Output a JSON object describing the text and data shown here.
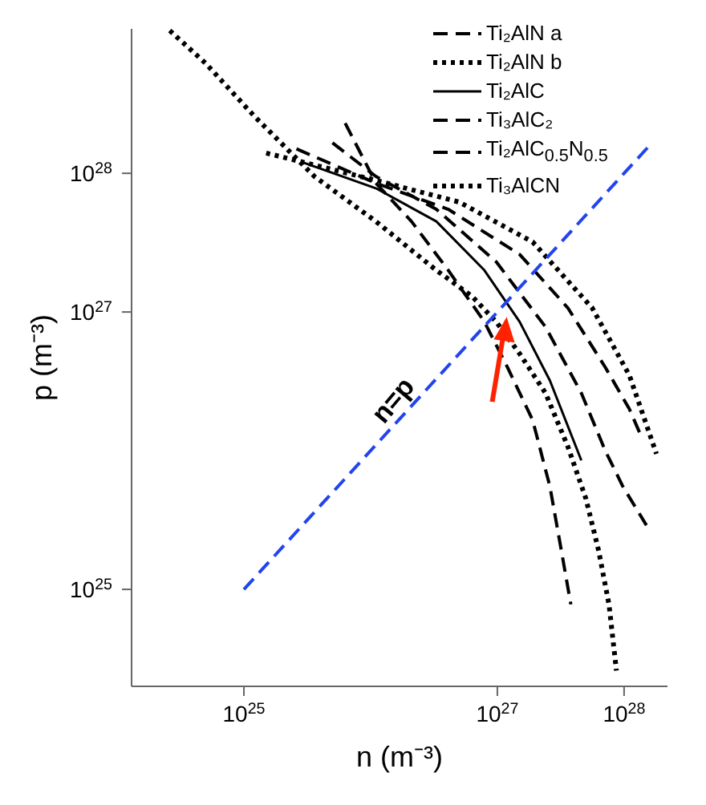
{
  "chart_data": {
    "type": "line",
    "xlabel": "n (m⁻³)",
    "ylabel": "p (m⁻³)",
    "xlim": [
      1.3e+24,
      2.2e+28
    ],
    "ylim": [
      2e+24,
      1.1e+29
    ],
    "xticks": [
      {
        "value": 1e+25,
        "label": "10$^{25}$"
      },
      {
        "value": 1e+27,
        "label": "10$^{27}$"
      },
      {
        "value": 1e+28,
        "label": "10$^{28}$"
      }
    ],
    "yticks": [
      {
        "value": 1e+25,
        "label": "10$^{25}$"
      },
      {
        "value": 1e+27,
        "label": "10$^{27}$"
      },
      {
        "value": 1e+28,
        "label": "10$^{28}$"
      }
    ],
    "log": "xy",
    "legend": "top right",
    "marker": "none",
    "annotations": [
      "n=p"
    ],
    "series": [
      {
        "name": "Ti₂AlN a",
        "color": "#000000",
        "line_style": "dashed",
        "x": [
          2.6e+25,
          1.1e+26,
          4.1e+26,
          1.5e+27,
          3.6e+27,
          7.1e+27,
          1.1e+28,
          1.35e+28
        ],
        "values": [
          1.5e+28,
          8.5e+27,
          5.5e+27,
          2.6e+27,
          1.07e+27,
          4e+26,
          2e+26,
          1.3e+26
        ]
      },
      {
        "name": "Ti₂AlN b",
        "color": "#000000",
        "line_style": "dotted",
        "x": [
          1.5e+25,
          1.1e+26,
          5e+26,
          1.9e+27,
          5.6e+27,
          1.1e+28,
          1.8e+28
        ],
        "values": [
          1.4e+28,
          8.9e+27,
          6.2e+27,
          3.2e+27,
          1.07e+27,
          3.5e+26,
          9.5e+25
        ]
      },
      {
        "name": "Ti₂AlC",
        "color": "#000000",
        "line_style": "solid",
        "x": [
          2.9e+25,
          1.1e+26,
          3.3e+26,
          7.9e+26,
          1.5e+27,
          2.6e+27,
          4.6e+27
        ],
        "values": [
          1.2e+28,
          7.8e+27,
          4.5e+27,
          2e+27,
          8.5e+26,
          3.2e+26,
          8.5e+25
        ]
      },
      {
        "name": "Ti₃AlC₂",
        "color": "#000000",
        "line_style": "dashed",
        "x": [
          5e+25,
          1.1e+26,
          3.3e+26,
          9.8e+26,
          2.4e+27,
          4.6e+27,
          7.1e+27,
          9.8e+27,
          1.5e+28
        ],
        "values": [
          1.66e+28,
          9.5e+27,
          5.5e+27,
          2.3e+27,
          7.8e+26,
          2.6e+26,
          1e+26,
          5.5e+25,
          2.9e+25
        ]
      },
      {
        "name": "Ti₂AlC$_{0.5}$N$_{0.5}$",
        "color": "#000000",
        "line_style": "dashed",
        "x": [
          6.3e+25,
          1.1e+26,
          2.1e+26,
          4.1e+26,
          7.9e+26,
          1.2e+27,
          1.9e+27,
          2.6e+27,
          3.2e+27,
          3.8e+27
        ],
        "values": [
          2.3e+28,
          8.5e+27,
          4.5e+27,
          2e+27,
          8.5e+26,
          4e+26,
          1.66e+26,
          5.5e+25,
          1.9e+25,
          7.8e+24
        ]
      },
      {
        "name": "Ti₃AlCN",
        "color": "#000000",
        "line_style": "dotted",
        "x": [
          2.6e+24,
          5e+24,
          1.2e+25,
          3.6e+25,
          1.1e+26,
          3.3e+26,
          6.3e+26,
          9.8e+26,
          1.5e+27,
          2.4e+27,
          3.6e+27,
          5e+27,
          6.3e+27,
          7.6e+27,
          8.7e+27
        ],
        "values": [
          1.07e+29,
          6.2e+28,
          2.6e+28,
          9.5e+27,
          4.5e+27,
          2e+27,
          1.3e+27,
          8.5e+26,
          5e+26,
          2.6e+26,
          1.07e+26,
          4.5e+25,
          1.9e+25,
          7.8e+24,
          2.6e+24
        ]
      },
      {
        "color": "#2244ee",
        "line_style": "dashed",
        "x": [
          1e+25,
          1.6e+28
        ],
        "values": [
          1e+25,
          1.6e+28
        ]
      }
    ]
  }
}
